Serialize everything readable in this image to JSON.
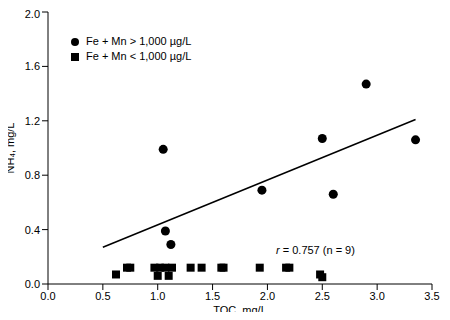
{
  "chart_data": {
    "type": "scatter",
    "x_label": "TOC, mg/L",
    "y_label": "NH₄, mg/L",
    "xlim": [
      0,
      3.5
    ],
    "ylim": [
      0,
      2
    ],
    "xticks": [
      {
        "value": 0,
        "label": "0.0"
      },
      0.5,
      {
        "value": 1,
        "label": "1.0"
      },
      1.5,
      {
        "value": 2,
        "label": "2.0"
      },
      2.5,
      {
        "value": 3,
        "label": "3.0"
      },
      3.5
    ],
    "yticks": [
      {
        "value": 0,
        "label": "0.0"
      },
      0.4,
      0.8,
      1.2,
      1.6,
      {
        "value": 2,
        "label": "2.0"
      }
    ],
    "grid": false,
    "legend": "upper left",
    "series": [
      {
        "name": "Fe + Mn > 1,000 µg/L",
        "color": "#000000",
        "marker": "circle",
        "x": [
          1.05,
          1.07,
          1.12,
          1.95,
          2.5,
          2.6,
          2.9,
          3.35
        ],
        "values": [
          0.99,
          0.39,
          0.29,
          0.69,
          1.07,
          0.66,
          1.47,
          1.06
        ]
      },
      {
        "name": "Fe + Mn < 1,000 µg/L",
        "color": "#000000",
        "marker": "square",
        "x": [
          0.62,
          0.72,
          0.75,
          0.97,
          1.0,
          1.02,
          1.07,
          1.1,
          1.13,
          1.3,
          1.4,
          1.58,
          1.6,
          1.93,
          2.17,
          2.2,
          2.48,
          2.5
        ],
        "values": [
          0.07,
          0.12,
          0.12,
          0.12,
          0.06,
          0.12,
          0.12,
          0.06,
          0.12,
          0.12,
          0.12,
          0.12,
          0.12,
          0.12,
          0.12,
          0.12,
          0.07,
          0.05
        ]
      }
    ],
    "trend_line": {
      "color": "#000000",
      "line_style": "solid",
      "x": [
        0.5,
        3.35
      ],
      "values": [
        0.27,
        1.21
      ]
    },
    "annotations": [
      {
        "text": "r = 0.757 (n = 9)"
      }
    ]
  }
}
